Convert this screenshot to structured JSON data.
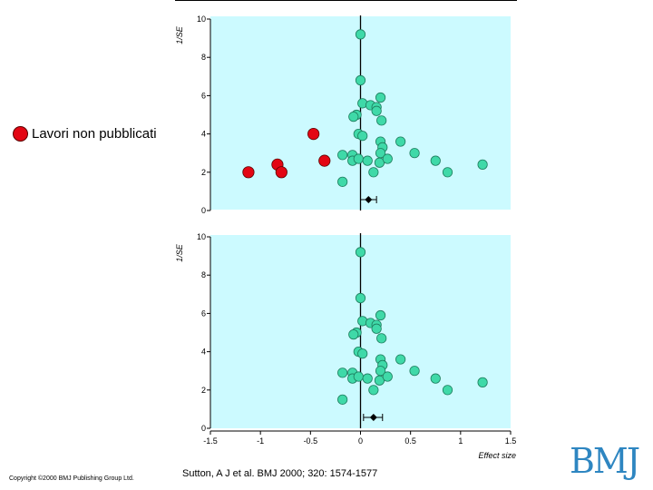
{
  "legend": {
    "label": "Lavori non pubblicati",
    "color": "#e30613"
  },
  "footer": {
    "copyright": "Copyright ©2000 BMJ Publishing Group Ltd.",
    "citation": "Sutton, A J et al. BMJ 2000; 320: 1574-1577",
    "logo": "BMJ"
  },
  "colors": {
    "panel_bg": "#ccfaff",
    "published_point": "#3fd9a8",
    "unpublished_point": "#e30613",
    "axis": "#000000"
  },
  "chart_data": [
    {
      "type": "scatter",
      "ylabel": "1/SE",
      "xlim": [
        -1.5,
        1.5
      ],
      "ylim": [
        0,
        10
      ],
      "yticks": [
        0,
        2,
        4,
        6,
        8,
        10
      ],
      "reference_line_x": 0,
      "series": [
        {
          "points": [
            [
              0.0,
              9.2
            ],
            [
              0.0,
              6.8
            ],
            [
              0.02,
              5.6
            ],
            [
              0.1,
              5.5
            ],
            [
              0.16,
              5.4
            ],
            [
              0.2,
              5.9
            ],
            [
              0.16,
              5.2
            ],
            [
              -0.04,
              5.0
            ],
            [
              -0.07,
              4.9
            ],
            [
              0.21,
              4.7
            ],
            [
              -0.02,
              4.0
            ],
            [
              0.02,
              3.9
            ],
            [
              0.2,
              3.6
            ],
            [
              0.4,
              3.6
            ],
            [
              0.22,
              3.3
            ],
            [
              0.2,
              3.0
            ],
            [
              0.54,
              3.0
            ],
            [
              -0.18,
              2.9
            ],
            [
              -0.08,
              2.9
            ],
            [
              0.75,
              2.6
            ],
            [
              -0.08,
              2.6
            ],
            [
              -0.02,
              2.7
            ],
            [
              0.07,
              2.6
            ],
            [
              0.19,
              2.5
            ],
            [
              0.27,
              2.7
            ],
            [
              1.22,
              2.4
            ],
            [
              0.13,
              2.0
            ],
            [
              0.87,
              2.0
            ],
            [
              -0.18,
              1.5
            ]
          ]
        },
        {
          "name": "Lavori non pubblicati",
          "points": [
            [
              -0.47,
              4.0
            ],
            [
              -0.36,
              2.6
            ],
            [
              -0.83,
              2.4
            ],
            [
              -1.12,
              2.0
            ],
            [
              -0.79,
              2.0
            ]
          ]
        }
      ],
      "pooled_estimate": {
        "x": 0.08,
        "ci": [
          0.0,
          0.16
        ]
      }
    },
    {
      "type": "scatter",
      "ylabel": "1/SE",
      "xlabel": "Effect size",
      "xlim": [
        -1.5,
        1.5
      ],
      "ylim": [
        0,
        10
      ],
      "xticks": [
        "-1.5",
        "-1",
        "-0.5",
        "0",
        "0.5",
        "1",
        "1.5"
      ],
      "yticks": [
        0,
        2,
        4,
        6,
        8,
        10
      ],
      "reference_line_x": 0,
      "series": [
        {
          "points": [
            [
              0.0,
              9.2
            ],
            [
              0.0,
              6.8
            ],
            [
              0.02,
              5.6
            ],
            [
              0.1,
              5.5
            ],
            [
              0.16,
              5.4
            ],
            [
              0.2,
              5.9
            ],
            [
              0.16,
              5.2
            ],
            [
              -0.04,
              5.0
            ],
            [
              -0.07,
              4.9
            ],
            [
              0.21,
              4.7
            ],
            [
              -0.02,
              4.0
            ],
            [
              0.02,
              3.9
            ],
            [
              0.2,
              3.6
            ],
            [
              0.4,
              3.6
            ],
            [
              0.22,
              3.3
            ],
            [
              0.2,
              3.0
            ],
            [
              0.54,
              3.0
            ],
            [
              -0.18,
              2.9
            ],
            [
              -0.08,
              2.9
            ],
            [
              0.75,
              2.6
            ],
            [
              -0.08,
              2.6
            ],
            [
              -0.02,
              2.7
            ],
            [
              0.07,
              2.6
            ],
            [
              0.19,
              2.5
            ],
            [
              0.27,
              2.7
            ],
            [
              1.22,
              2.4
            ],
            [
              0.13,
              2.0
            ],
            [
              0.87,
              2.0
            ],
            [
              -0.18,
              1.5
            ]
          ]
        }
      ],
      "pooled_estimate": {
        "x": 0.13,
        "ci": [
          0.03,
          0.22
        ]
      }
    }
  ]
}
